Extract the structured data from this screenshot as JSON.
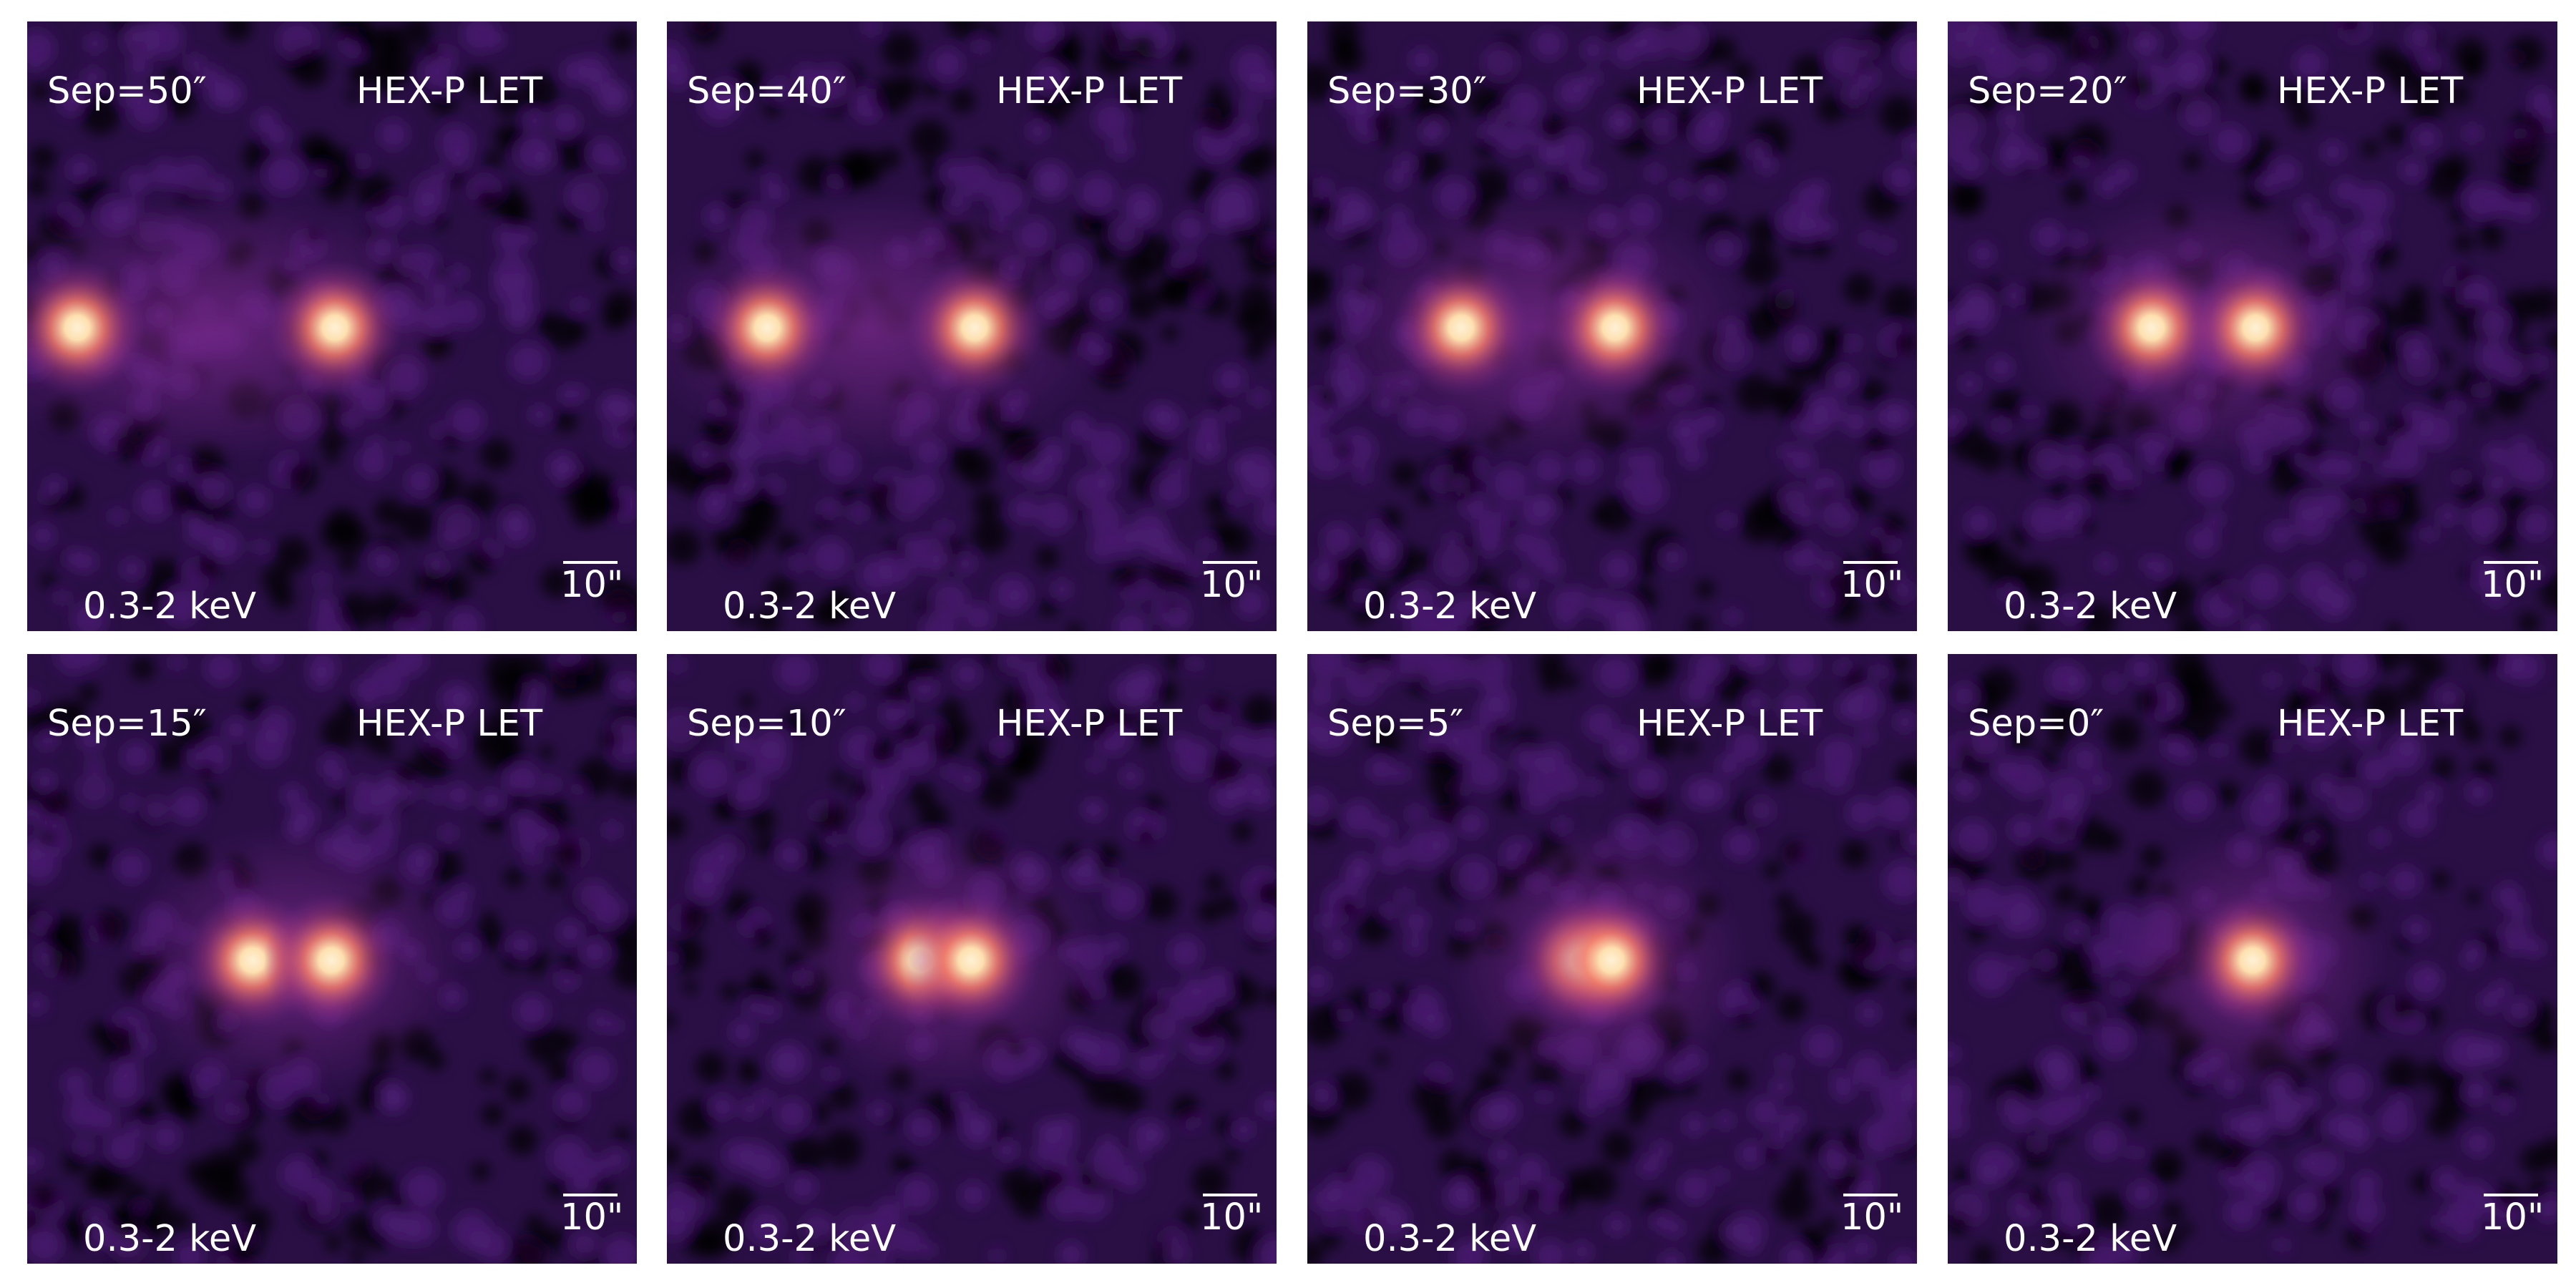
{
  "panels": [
    {
      "sep_label": "Sep=50″",
      "instrument": "HEX-P LET",
      "band": "0.3-2 keV",
      "scale": "10\"",
      "separation_arcsec": 50
    },
    {
      "sep_label": "Sep=40″",
      "instrument": "HEX-P LET",
      "band": "0.3-2 keV",
      "scale": "10\"",
      "separation_arcsec": 40
    },
    {
      "sep_label": "Sep=30″",
      "instrument": "HEX-P LET",
      "band": "0.3-2 keV",
      "scale": "10\"",
      "separation_arcsec": 30
    },
    {
      "sep_label": "Sep=20″",
      "instrument": "HEX-P LET",
      "band": "0.3-2 keV",
      "scale": "10\"",
      "separation_arcsec": 20
    },
    {
      "sep_label": "Sep=15″",
      "instrument": "HEX-P LET",
      "band": "0.3-2 keV",
      "scale": "10\"",
      "separation_arcsec": 15
    },
    {
      "sep_label": "Sep=10″",
      "instrument": "HEX-P LET",
      "band": "0.3-2 keV",
      "scale": "10\"",
      "separation_arcsec": 10
    },
    {
      "sep_label": "Sep=5″",
      "instrument": "HEX-P LET",
      "band": "0.3-2 keV",
      "scale": "10\"",
      "separation_arcsec": 5
    },
    {
      "sep_label": "Sep=0″",
      "instrument": "HEX-P LET",
      "band": "0.3-2 keV",
      "scale": "10\"",
      "separation_arcsec": 0
    }
  ],
  "colors": {
    "background": "#1a0826",
    "noise_dark": "#000000",
    "noise_purple": "#4b1d72",
    "halo": "#7a2a8c",
    "core": "#fde0b0"
  }
}
